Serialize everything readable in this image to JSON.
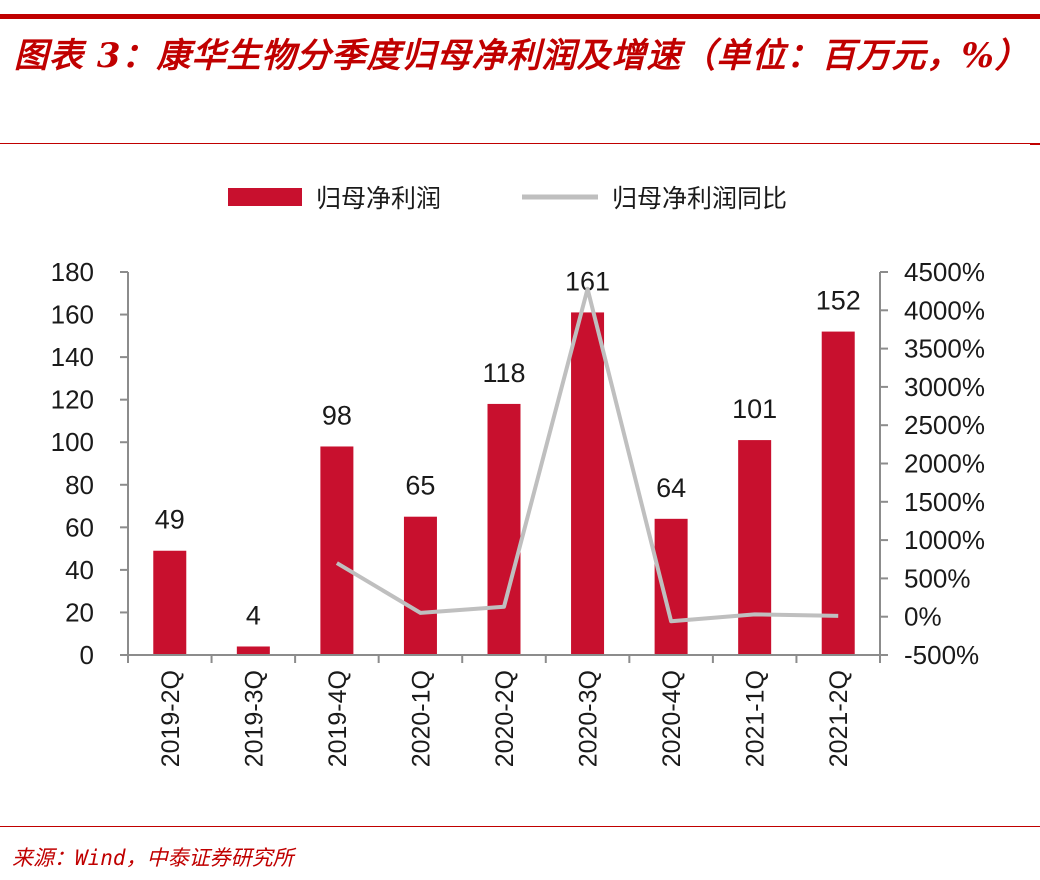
{
  "colors": {
    "accent": "#c00000",
    "bar": "#c8102e",
    "line": "#bfbfbf",
    "axis": "#8c8c8c",
    "text": "#1a1a1a"
  },
  "header": {
    "title": "图表 3：康华生物分季度归母净利润及增速（单位：百万元，%）"
  },
  "footer": {
    "source": "来源：Wind，中泰证券研究所"
  },
  "chart_data": {
    "type": "bar",
    "categories": [
      "2019-2Q",
      "2019-3Q",
      "2019-4Q",
      "2020-1Q",
      "2020-2Q",
      "2020-3Q",
      "2020-4Q",
      "2021-1Q",
      "2021-2Q"
    ],
    "series": [
      {
        "name": "归母净利润",
        "type": "bar",
        "axis": "left",
        "values": [
          49,
          4,
          98,
          65,
          118,
          161,
          64,
          101,
          152
        ],
        "data_labels": [
          "49",
          "4",
          "98",
          "65",
          "118",
          "161",
          "64",
          "101",
          "152"
        ]
      },
      {
        "name": "归母净利润同比",
        "type": "line",
        "axis": "right",
        "values": [
          null,
          null,
          700,
          50,
          130,
          4280,
          -60,
          30,
          10
        ]
      }
    ],
    "y_left": {
      "ylim": [
        0,
        180
      ],
      "ticks": [
        0,
        20,
        40,
        60,
        80,
        100,
        120,
        140,
        160,
        180
      ],
      "tick_labels": [
        "0",
        "20",
        "40",
        "60",
        "80",
        "100",
        "120",
        "140",
        "160",
        "180"
      ]
    },
    "y_right": {
      "ylim": [
        -500,
        4500
      ],
      "ticks": [
        -500,
        0,
        500,
        1000,
        1500,
        2000,
        2500,
        3000,
        3500,
        4000,
        4500
      ],
      "tick_labels": [
        "-500%",
        "0%",
        "500%",
        "1000%",
        "1500%",
        "2000%",
        "2500%",
        "3000%",
        "3500%",
        "4000%",
        "4500%"
      ]
    },
    "legend": "top-center",
    "grid": false
  }
}
